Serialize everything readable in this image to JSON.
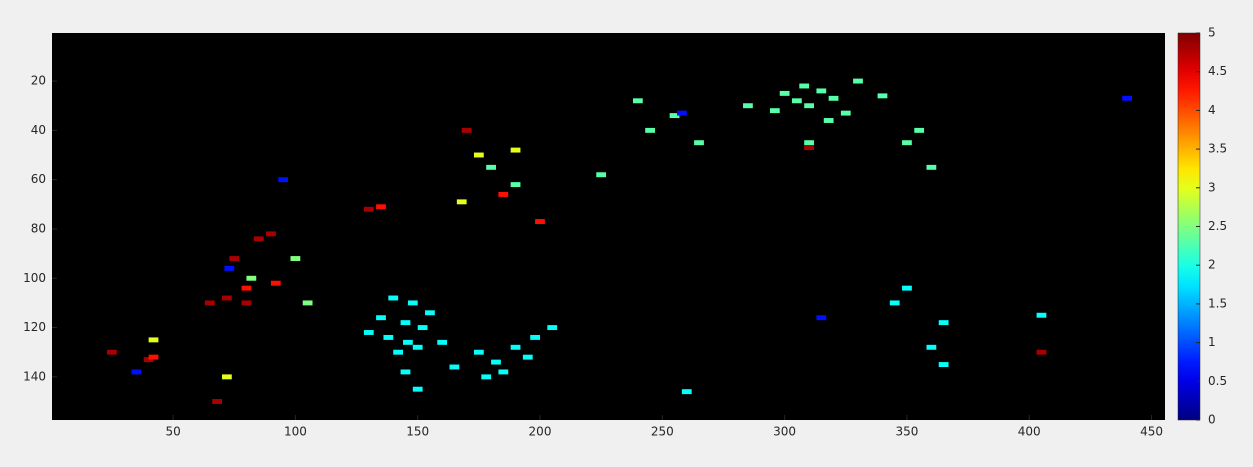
{
  "chart_data": {
    "type": "heatmap",
    "x": [
      300,
      305,
      310,
      315,
      320,
      325,
      318,
      296,
      308,
      330,
      340,
      285,
      255,
      245,
      350,
      355,
      240,
      360,
      310,
      180,
      190,
      225,
      265,
      140,
      148,
      155,
      135,
      145,
      152,
      138,
      146,
      142,
      150,
      130,
      160,
      175,
      182,
      190,
      198,
      205,
      185,
      178,
      195,
      165,
      145,
      150,
      260,
      345,
      350,
      365,
      360,
      365,
      405,
      315,
      258,
      440,
      73,
      95,
      35,
      85,
      90,
      75,
      72,
      80,
      65,
      25,
      40,
      68,
      130,
      170,
      310,
      405,
      185,
      42,
      80,
      92,
      135,
      200,
      42,
      168,
      190,
      72,
      175,
      82,
      100,
      105
    ],
    "y": [
      25,
      28,
      30,
      24,
      27,
      33,
      36,
      32,
      22,
      20,
      26,
      30,
      34,
      40,
      45,
      40,
      28,
      55,
      45,
      55,
      62,
      58,
      45,
      108,
      110,
      114,
      116,
      118,
      120,
      124,
      126,
      130,
      128,
      122,
      126,
      130,
      134,
      128,
      124,
      120,
      138,
      140,
      132,
      136,
      138,
      145,
      146,
      110,
      104,
      118,
      128,
      135,
      115,
      116,
      33,
      27,
      96,
      60,
      138,
      84,
      82,
      92,
      108,
      110,
      110,
      130,
      133,
      150,
      72,
      40,
      47,
      130,
      66,
      132,
      104,
      102,
      71,
      77,
      125,
      69,
      48,
      140,
      50,
      100,
      92,
      110
    ],
    "values": [
      2.3,
      2.3,
      2.3,
      2.3,
      2.3,
      2.3,
      2.3,
      2.3,
      2.3,
      2.3,
      2.3,
      2.3,
      2.3,
      2.3,
      2.3,
      2.3,
      2.3,
      2.3,
      2.3,
      2.3,
      2.3,
      2.3,
      2.3,
      1.9,
      1.9,
      1.9,
      1.9,
      1.9,
      1.9,
      1.9,
      1.9,
      1.9,
      1.9,
      1.9,
      1.9,
      1.9,
      1.9,
      1.9,
      1.9,
      1.9,
      1.9,
      1.9,
      1.9,
      1.9,
      1.9,
      1.9,
      1.9,
      1.9,
      1.9,
      1.9,
      1.9,
      1.9,
      1.9,
      0.7,
      0.7,
      0.7,
      0.7,
      0.7,
      0.7,
      4.8,
      4.8,
      4.8,
      4.8,
      4.8,
      4.8,
      4.8,
      4.8,
      4.8,
      4.8,
      4.8,
      4.8,
      4.8,
      4.3,
      4.3,
      4.3,
      4.3,
      4.3,
      4.3,
      3,
      3,
      3,
      3,
      3,
      2.5,
      2.5,
      2.5
    ],
    "xlim": [
      0.5,
      455.5
    ],
    "ylim": [
      157.5,
      0.5
    ],
    "xticks": [
      50,
      100,
      150,
      200,
      250,
      300,
      350,
      400,
      450
    ],
    "yticks": [
      20,
      40,
      60,
      80,
      100,
      120,
      140
    ],
    "clim": [
      0,
      5
    ],
    "cticks": [
      0,
      0.5,
      1,
      1.5,
      2,
      2.5,
      3,
      3.5,
      4,
      4.5,
      5
    ],
    "colormap": "jet"
  }
}
